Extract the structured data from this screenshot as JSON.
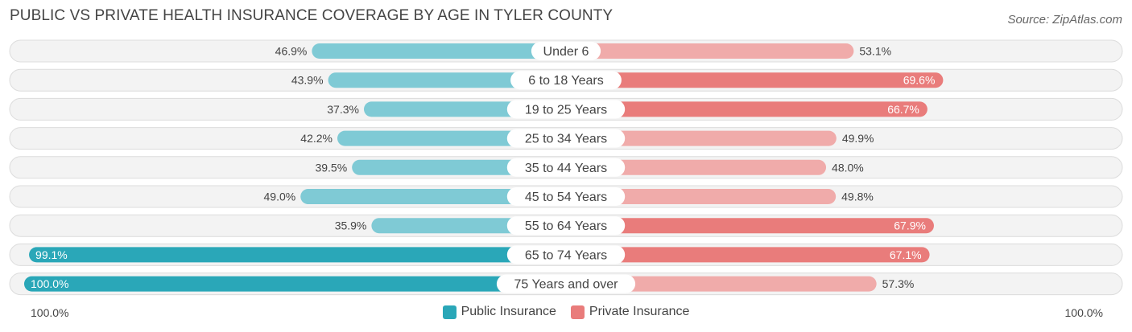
{
  "chart_data": {
    "type": "bar",
    "orientation": "horizontal-diverging",
    "title": "PUBLIC VS PRIVATE HEALTH INSURANCE COVERAGE BY AGE IN TYLER COUNTY",
    "source": "Source: ZipAtlas.com",
    "categories": [
      "Under 6",
      "6 to 18 Years",
      "19 to 25 Years",
      "25 to 34 Years",
      "35 to 44 Years",
      "45 to 54 Years",
      "55 to 64 Years",
      "65 to 74 Years",
      "75 Years and over"
    ],
    "series": [
      {
        "name": "Public Insurance",
        "values": [
          46.9,
          43.9,
          37.3,
          42.2,
          39.5,
          49.0,
          35.9,
          99.1,
          100.0
        ],
        "labels": [
          "46.9%",
          "43.9%",
          "37.3%",
          "42.2%",
          "39.5%",
          "49.0%",
          "35.9%",
          "99.1%",
          "100.0%"
        ]
      },
      {
        "name": "Private Insurance",
        "values": [
          53.1,
          69.6,
          66.7,
          49.9,
          48.0,
          49.8,
          67.9,
          67.1,
          57.3
        ],
        "labels": [
          "53.1%",
          "69.6%",
          "66.7%",
          "49.9%",
          "48.0%",
          "49.8%",
          "67.9%",
          "67.1%",
          "57.3%"
        ]
      }
    ],
    "axis": {
      "left_label": "100.0%",
      "right_label": "100.0%",
      "range": [
        0,
        100
      ]
    },
    "legend": {
      "position": "bottom-center",
      "items": [
        "Public Insurance",
        "Private Insurance"
      ]
    },
    "colors": {
      "public_strong": "#2aa7b8",
      "public_light": "#7fcad5",
      "private_strong": "#e97c7b",
      "private_light": "#f0abaa",
      "row_bg": "#f3f3f3",
      "row_border": "#dcdcdc"
    }
  }
}
